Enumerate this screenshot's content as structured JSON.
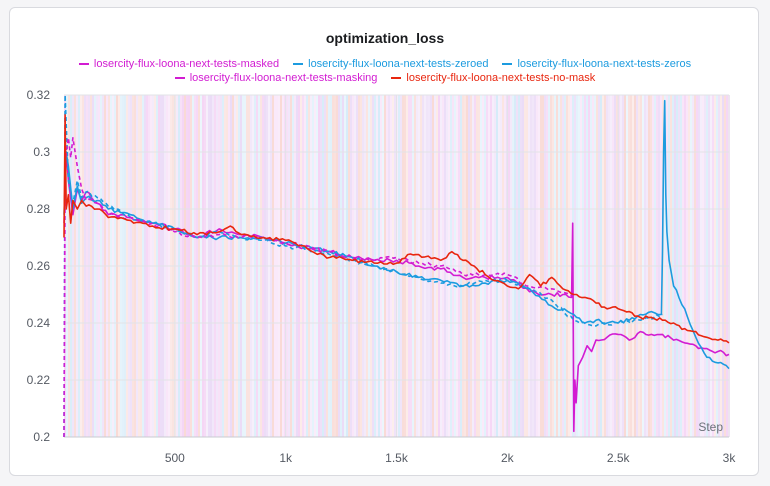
{
  "chart_data": {
    "type": "line",
    "title": "optimization_loss",
    "xlabel": "Step",
    "ylabel": "",
    "xlim": [
      0,
      3000
    ],
    "ylim": [
      0.2,
      0.32
    ],
    "x_ticks": [
      500,
      1000,
      1500,
      2000,
      2500,
      3000
    ],
    "x_tick_labels": [
      "500",
      "1k",
      "1.5k",
      "2k",
      "2.5k",
      "3k"
    ],
    "y_ticks": [
      0.2,
      0.22,
      0.24,
      0.26,
      0.28,
      0.3,
      0.32
    ],
    "y_tick_labels": [
      "0.2",
      "0.22",
      "0.24",
      "0.26",
      "0.28",
      "0.3",
      "0.32"
    ],
    "legend_position": "top",
    "grid": true,
    "series": [
      {
        "name": "losercity-flux-loona-next-tests-masked",
        "color": "#d21cd2",
        "dash": false,
        "x": [
          0,
          10,
          20,
          40,
          60,
          80,
          100,
          150,
          200,
          300,
          400,
          500,
          600,
          700,
          800,
          900,
          1000,
          1100,
          1200,
          1300,
          1400,
          1500,
          1600,
          1700,
          1800,
          1900,
          2000,
          2100,
          2200,
          2250,
          2290,
          2295,
          2300,
          2305,
          2310,
          2320,
          2340,
          2360,
          2380,
          2400,
          2450,
          2500,
          2550,
          2600,
          2650,
          2700,
          2750,
          2800,
          2850,
          2900,
          2950,
          3000
        ],
        "y": [
          0.275,
          0.3,
          0.29,
          0.278,
          0.287,
          0.283,
          0.286,
          0.282,
          0.278,
          0.277,
          0.275,
          0.273,
          0.27,
          0.273,
          0.271,
          0.27,
          0.268,
          0.266,
          0.265,
          0.263,
          0.262,
          0.262,
          0.26,
          0.259,
          0.256,
          0.256,
          0.256,
          0.251,
          0.25,
          0.25,
          0.249,
          0.275,
          0.202,
          0.22,
          0.212,
          0.225,
          0.228,
          0.232,
          0.23,
          0.234,
          0.235,
          0.236,
          0.234,
          0.237,
          0.236,
          0.236,
          0.234,
          0.233,
          0.232,
          0.231,
          0.23,
          0.229
        ]
      },
      {
        "name": "losercity-flux-loona-next-tests-zeroed",
        "color": "#1c9bdf",
        "dash": false,
        "x": [
          0,
          10,
          20,
          40,
          60,
          80,
          100,
          150,
          200,
          300,
          400,
          500,
          600,
          700,
          800,
          900,
          1000,
          1100,
          1200,
          1300,
          1400,
          1500,
          1600,
          1700,
          1800,
          1900,
          2000,
          2050,
          2100,
          2200,
          2300,
          2350,
          2400,
          2450,
          2500,
          2550,
          2600,
          2650,
          2695,
          2700,
          2705,
          2710,
          2715,
          2720,
          2730,
          2750,
          2800,
          2850,
          2900,
          2950,
          3000
        ],
        "y": [
          0.278,
          0.3,
          0.295,
          0.28,
          0.288,
          0.282,
          0.284,
          0.283,
          0.28,
          0.278,
          0.275,
          0.273,
          0.27,
          0.27,
          0.27,
          0.27,
          0.268,
          0.267,
          0.265,
          0.263,
          0.26,
          0.258,
          0.256,
          0.255,
          0.253,
          0.254,
          0.255,
          0.254,
          0.252,
          0.246,
          0.243,
          0.24,
          0.241,
          0.24,
          0.24,
          0.241,
          0.243,
          0.244,
          0.243,
          0.265,
          0.3,
          0.318,
          0.285,
          0.272,
          0.262,
          0.253,
          0.245,
          0.235,
          0.228,
          0.226,
          0.224
        ]
      },
      {
        "name": "losercity-flux-loona-next-tests-zeros",
        "color": "#1c9bdf",
        "dash": true,
        "x": [
          0,
          5,
          10,
          20,
          40,
          60,
          80,
          100,
          150,
          200,
          300,
          400,
          500,
          600,
          700,
          800,
          900,
          1000,
          1100,
          1200,
          1300,
          1400,
          1500,
          1600,
          1700,
          1800,
          1900,
          2000,
          2100,
          2200,
          2300,
          2400,
          2500,
          2600,
          2700
        ],
        "y": [
          0.2,
          0.32,
          0.31,
          0.29,
          0.282,
          0.29,
          0.284,
          0.286,
          0.284,
          0.281,
          0.277,
          0.275,
          0.273,
          0.27,
          0.272,
          0.27,
          0.269,
          0.267,
          0.266,
          0.264,
          0.262,
          0.26,
          0.258,
          0.256,
          0.254,
          0.253,
          0.255,
          0.255,
          0.252,
          0.248,
          0.241,
          0.239,
          0.24,
          0.241,
          0.243
        ]
      },
      {
        "name": "losercity-flux-loona-next-tests-masking",
        "color": "#d21cd2",
        "dash": true,
        "x": [
          0,
          5,
          10,
          20,
          30,
          40,
          50,
          60,
          80,
          100,
          150,
          200,
          300,
          400,
          500,
          600,
          700,
          800,
          900,
          1000,
          1100,
          1200,
          1300,
          1400,
          1500,
          1600,
          1700,
          1800,
          1900,
          2000,
          2100,
          2200,
          2300
        ],
        "y": [
          0.2,
          0.29,
          0.3,
          0.305,
          0.298,
          0.305,
          0.3,
          0.295,
          0.287,
          0.283,
          0.282,
          0.278,
          0.277,
          0.275,
          0.272,
          0.27,
          0.271,
          0.27,
          0.27,
          0.268,
          0.267,
          0.265,
          0.263,
          0.262,
          0.263,
          0.261,
          0.26,
          0.257,
          0.257,
          0.257,
          0.253,
          0.252,
          0.25
        ]
      },
      {
        "name": "losercity-flux-loona-next-tests-no-mask",
        "color": "#e8260f",
        "dash": false,
        "x": [
          0,
          5,
          10,
          20,
          30,
          40,
          60,
          80,
          100,
          150,
          200,
          300,
          400,
          500,
          600,
          700,
          750,
          800,
          900,
          1000,
          1100,
          1200,
          1300,
          1400,
          1500,
          1550,
          1600,
          1700,
          1750,
          1800,
          1850,
          1900,
          2000,
          2050,
          2100,
          2150,
          2200,
          2250,
          2300,
          2350,
          2400,
          2450,
          2500,
          2550,
          2600,
          2650,
          2700,
          2750,
          2800,
          2850,
          2900,
          2950,
          3000
        ],
        "y": [
          0.27,
          0.313,
          0.28,
          0.285,
          0.275,
          0.283,
          0.28,
          0.283,
          0.281,
          0.28,
          0.277,
          0.276,
          0.274,
          0.273,
          0.271,
          0.272,
          0.274,
          0.271,
          0.27,
          0.269,
          0.266,
          0.263,
          0.262,
          0.261,
          0.261,
          0.264,
          0.264,
          0.262,
          0.265,
          0.262,
          0.26,
          0.257,
          0.253,
          0.252,
          0.257,
          0.253,
          0.256,
          0.252,
          0.25,
          0.249,
          0.247,
          0.245,
          0.245,
          0.244,
          0.242,
          0.242,
          0.241,
          0.24,
          0.238,
          0.237,
          0.235,
          0.234,
          0.233
        ]
      }
    ]
  }
}
